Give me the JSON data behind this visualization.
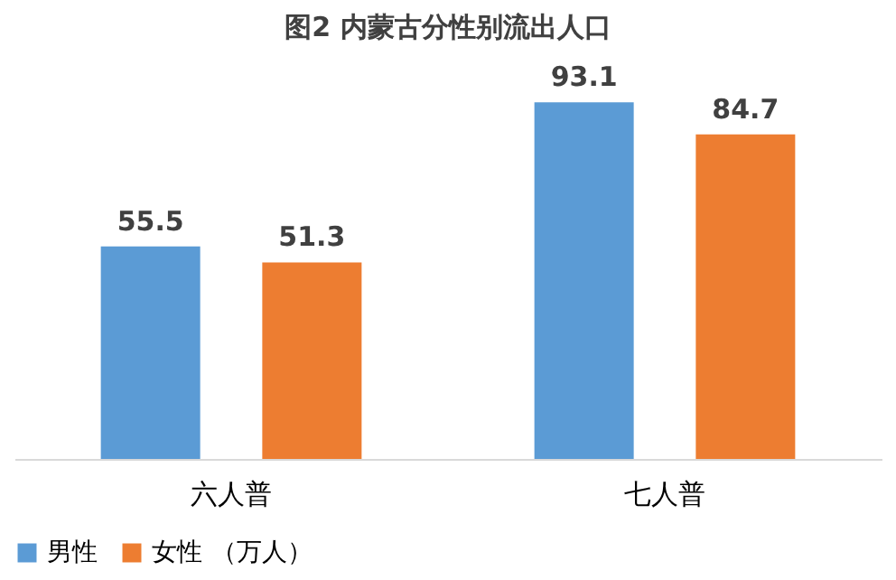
{
  "chart_data": {
    "type": "bar",
    "title": "图2  内蒙古分性别流出人口",
    "categories": [
      "六人普",
      "七人普"
    ],
    "series": [
      {
        "name": "男性",
        "color": "#5b9bd5",
        "values": [
          55.5,
          93.1
        ]
      },
      {
        "name": "女性",
        "color": "#ed7d31",
        "values": [
          51.3,
          84.7
        ]
      }
    ],
    "legend_title": "（万人）",
    "legend": "bottom",
    "data_labels": true,
    "grid": false
  }
}
